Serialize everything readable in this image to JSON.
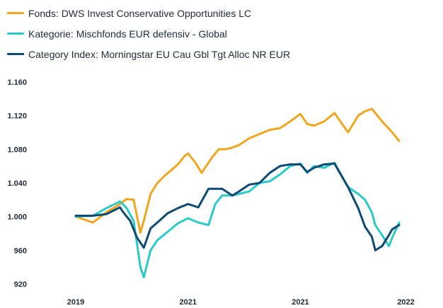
{
  "chart_data": {
    "type": "line",
    "title": "",
    "xlabel": "",
    "ylabel": "",
    "ylim": [
      920,
      1170
    ],
    "xlim": [
      0,
      100
    ],
    "yticks": [
      "1.160",
      "1.120",
      "1.080",
      "1.040",
      "1.000",
      "960",
      "920"
    ],
    "ytick_values": [
      1160,
      1120,
      1080,
      1040,
      1000,
      960,
      920
    ],
    "xticks": [
      "2019",
      "2021",
      "2021",
      "2022"
    ],
    "xtick_values": [
      0,
      33,
      66,
      97
    ],
    "legend_position": "top-left",
    "series": [
      {
        "name": "Fonds: DWS Invest Conservative Opportunities LC",
        "color": "#f0a51e",
        "x": [
          0,
          5,
          9,
          13,
          15,
          17,
          19,
          20,
          22,
          24,
          26,
          28,
          30,
          32,
          33,
          35,
          37,
          40,
          42,
          44,
          46,
          48,
          51,
          54,
          57,
          60,
          63,
          66,
          68,
          70,
          73,
          76,
          80,
          83,
          85,
          87,
          90,
          93,
          95
        ],
        "values": [
          1000,
          993,
          1005,
          1015,
          1021,
          1020,
          981,
          995,
          1027,
          1040,
          1048,
          1055,
          1062,
          1072,
          1075,
          1065,
          1052,
          1070,
          1080,
          1080,
          1082,
          1085,
          1093,
          1098,
          1103,
          1105,
          1113,
          1122,
          1110,
          1108,
          1113,
          1123,
          1100,
          1120,
          1125,
          1128,
          1113,
          1100,
          1090
        ]
      },
      {
        "name": "Kategorie: Mischfonds EUR defensiv - Global",
        "color": "#2bc9c7",
        "x": [
          0,
          5,
          9,
          13,
          15,
          17,
          18,
          19,
          20,
          22,
          24,
          27,
          30,
          33,
          36,
          39,
          41,
          43,
          46,
          48,
          51,
          54,
          57,
          60,
          63,
          66,
          68,
          70,
          73,
          76,
          80,
          83,
          85,
          87,
          88,
          90,
          92,
          93,
          95
        ],
        "values": [
          1000,
          1001,
          1010,
          1018,
          1010,
          995,
          968,
          940,
          928,
          960,
          972,
          982,
          992,
          998,
          993,
          990,
          1015,
          1025,
          1025,
          1027,
          1030,
          1040,
          1042,
          1050,
          1060,
          1063,
          1052,
          1060,
          1058,
          1064,
          1035,
          1027,
          1020,
          1005,
          990,
          978,
          965,
          975,
          993
        ]
      },
      {
        "name": "Category Index: Morningstar EU Cau Gbl Tgt Alloc NR EUR",
        "color": "#0d4a73",
        "x": [
          0,
          5,
          9,
          13,
          14,
          16,
          18,
          20,
          22,
          24,
          27,
          30,
          33,
          36,
          39,
          41,
          43,
          46,
          48,
          51,
          54,
          57,
          60,
          63,
          66,
          68,
          70,
          73,
          76,
          80,
          83,
          85,
          87,
          88,
          90,
          92,
          93,
          95
        ],
        "values": [
          1001,
          1001,
          1003,
          1011,
          1005,
          995,
          975,
          963,
          986,
          993,
          1004,
          1010,
          1015,
          1011,
          1033,
          1033,
          1033,
          1025,
          1030,
          1038,
          1040,
          1052,
          1060,
          1062,
          1062,
          1053,
          1058,
          1062,
          1063,
          1035,
          1010,
          988,
          976,
          960,
          965,
          978,
          985,
          990
        ]
      }
    ]
  }
}
